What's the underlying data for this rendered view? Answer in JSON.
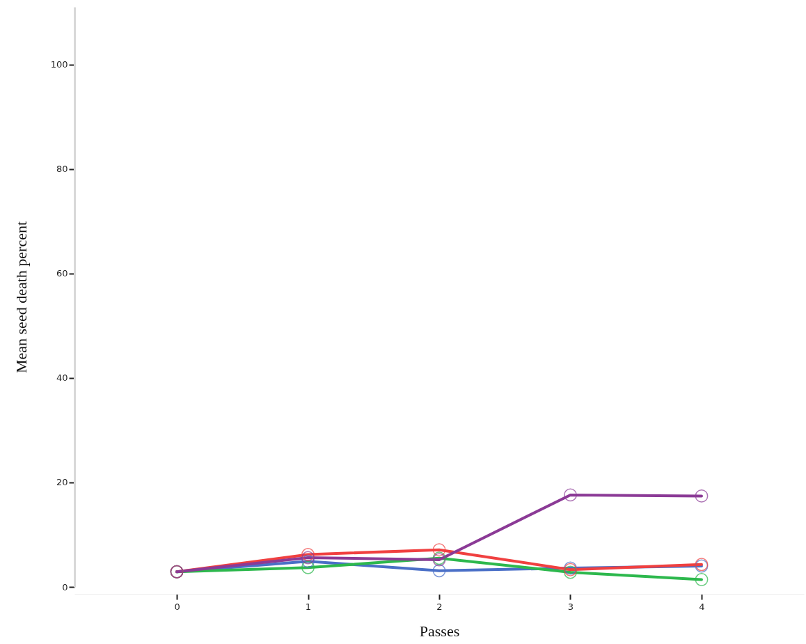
{
  "chart_data": {
    "type": "line",
    "xlabel": "Passes",
    "ylabel": "Mean seed death percent",
    "x": [
      0,
      1,
      2,
      3,
      4
    ],
    "series": [
      {
        "color": "#4a6fc7",
        "values": [
          2.9,
          4.9,
          3.1,
          3.6,
          4.0
        ]
      },
      {
        "color": "#2db84d",
        "values": [
          2.9,
          3.7,
          5.5,
          2.8,
          1.4
        ]
      },
      {
        "color": "#f04040",
        "values": [
          2.9,
          6.2,
          7.1,
          3.3,
          4.3
        ]
      },
      {
        "color": "#8b3a96",
        "values": [
          2.9,
          5.6,
          5.2,
          17.6,
          17.4
        ]
      }
    ],
    "xlim": [
      -0.78,
      4.78
    ],
    "xticks": [
      0,
      1,
      2,
      3,
      4
    ],
    "ylim": [
      0,
      111
    ],
    "yticks": [
      0,
      20,
      40,
      60,
      80,
      100
    ],
    "marker": "circle",
    "line_style": "solid",
    "grid": false
  }
}
